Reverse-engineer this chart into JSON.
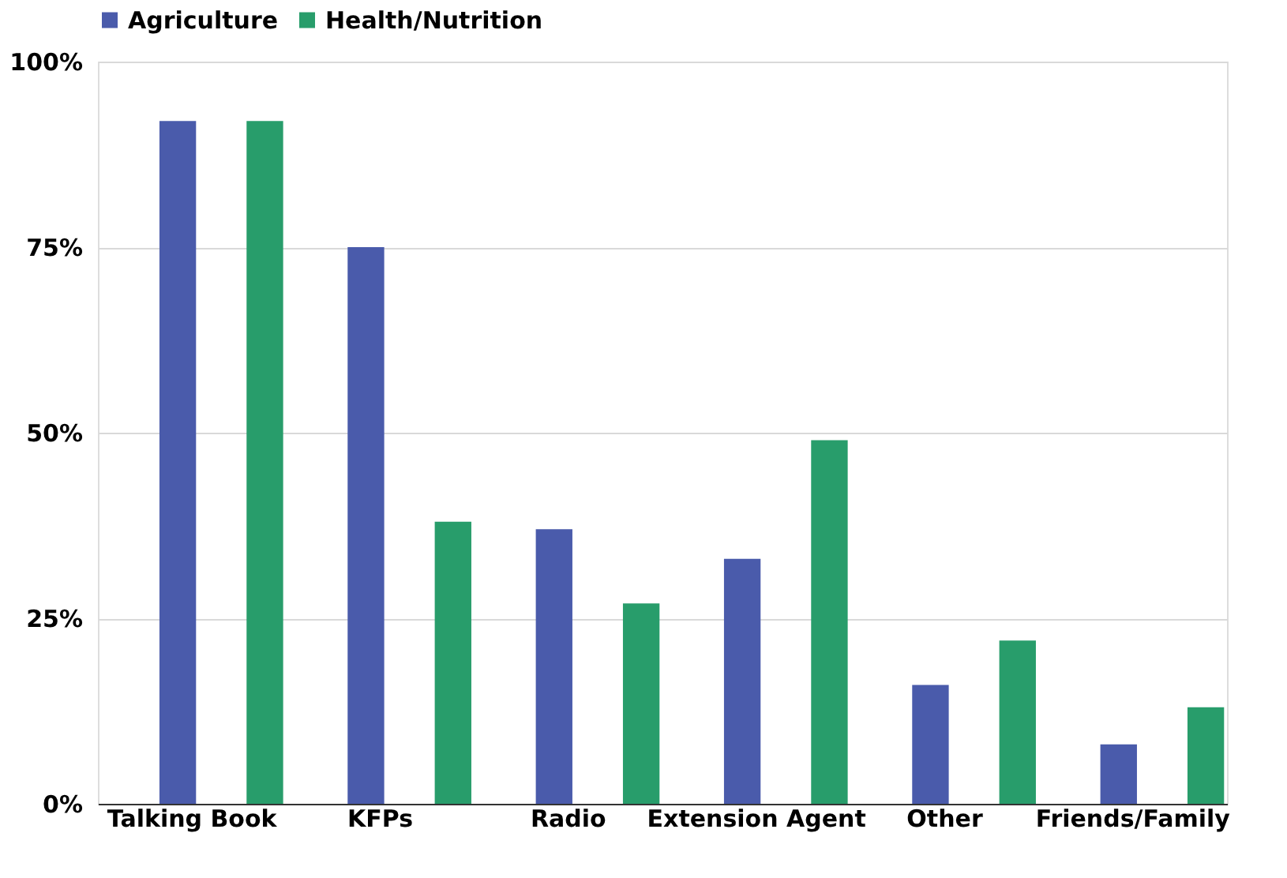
{
  "chart_data": {
    "type": "bar",
    "categories": [
      "Talking Book",
      "KFPs",
      "Radio",
      "Extension Agent",
      "Other",
      "Friends/Family"
    ],
    "series": [
      {
        "name": "Agriculture",
        "color": "#4a5bab",
        "values": [
          92,
          75,
          37,
          33,
          16,
          8
        ]
      },
      {
        "name": "Health/Nutrition",
        "color": "#289d6b",
        "values": [
          92,
          38,
          27,
          49,
          22,
          13
        ]
      }
    ],
    "ylim": [
      0,
      100
    ],
    "yticks": [
      {
        "value": 0,
        "label": "0%"
      },
      {
        "value": 25,
        "label": "25%"
      },
      {
        "value": 50,
        "label": "50%"
      },
      {
        "value": 75,
        "label": "75%"
      },
      {
        "value": 100,
        "label": "100%"
      }
    ],
    "grid": "y",
    "legend": "top"
  }
}
